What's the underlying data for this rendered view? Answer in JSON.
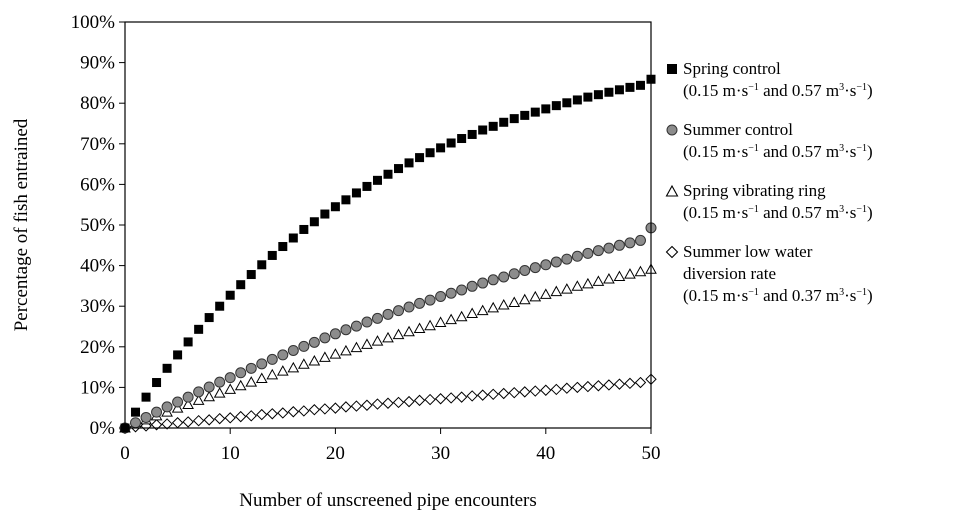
{
  "chart_data": {
    "type": "scatter",
    "xlabel": "Number of unscreened pipe encounters",
    "ylabel": "Percentage of fish entrained",
    "xlim": [
      0,
      50
    ],
    "ylim": [
      0,
      100
    ],
    "xticks": [
      0,
      10,
      20,
      30,
      40,
      50
    ],
    "yticks": [
      "0%",
      "10%",
      "20%",
      "30%",
      "40%",
      "50%",
      "60%",
      "70%",
      "80%",
      "90%",
      "100%"
    ],
    "grid": false,
    "legend_position": "right",
    "x": [
      0,
      1,
      2,
      3,
      4,
      5,
      6,
      7,
      8,
      9,
      10,
      11,
      12,
      13,
      14,
      15,
      16,
      17,
      18,
      19,
      20,
      21,
      22,
      23,
      24,
      25,
      26,
      27,
      28,
      29,
      30,
      31,
      32,
      33,
      34,
      35,
      36,
      37,
      38,
      39,
      40,
      41,
      42,
      43,
      44,
      45,
      46,
      47,
      48,
      49,
      50
    ],
    "series": [
      {
        "name": "Spring control",
        "marker": "square-filled",
        "color": "#000000",
        "values": [
          0,
          3.9,
          7.6,
          11.2,
          14.7,
          18.0,
          21.2,
          24.3,
          27.2,
          30.0,
          32.7,
          35.3,
          37.8,
          40.2,
          42.5,
          44.7,
          46.8,
          48.9,
          50.8,
          52.7,
          54.5,
          56.2,
          57.9,
          59.5,
          61.0,
          62.5,
          63.9,
          65.3,
          66.6,
          67.8,
          69.0,
          70.2,
          71.3,
          72.3,
          73.4,
          74.3,
          75.3,
          76.2,
          77.0,
          77.8,
          78.6,
          79.4,
          80.1,
          80.8,
          81.5,
          82.1,
          82.7,
          83.3,
          83.9,
          84.4,
          85.9
        ]
      },
      {
        "name": "Summer control",
        "marker": "circle-gray",
        "color": "#8c8c8c",
        "values": [
          0,
          1.3,
          2.6,
          3.9,
          5.2,
          6.4,
          7.6,
          8.9,
          10.1,
          11.3,
          12.4,
          13.6,
          14.7,
          15.8,
          16.9,
          18.0,
          19.1,
          20.1,
          21.1,
          22.2,
          23.2,
          24.2,
          25.1,
          26.1,
          27.0,
          28.0,
          28.9,
          29.8,
          30.7,
          31.5,
          32.4,
          33.2,
          34.0,
          34.9,
          35.7,
          36.5,
          37.2,
          38.0,
          38.8,
          39.5,
          40.2,
          40.9,
          41.6,
          42.3,
          43.0,
          43.7,
          44.3,
          45.0,
          45.6,
          46.2,
          49.3
        ]
      },
      {
        "name": "Spring vibrating ring",
        "marker": "triangle-open",
        "color": "#000000",
        "values": [
          0,
          1.0,
          2.0,
          3.0,
          3.9,
          4.9,
          5.8,
          6.8,
          7.7,
          8.6,
          9.5,
          10.4,
          11.3,
          12.2,
          13.1,
          14.0,
          14.8,
          15.7,
          16.5,
          17.4,
          18.2,
          19.0,
          19.8,
          20.6,
          21.4,
          22.2,
          23.0,
          23.7,
          24.5,
          25.2,
          26.0,
          26.7,
          27.4,
          28.2,
          28.9,
          29.6,
          30.3,
          30.9,
          31.6,
          32.3,
          32.9,
          33.6,
          34.2,
          34.9,
          35.5,
          36.1,
          36.7,
          37.3,
          37.9,
          38.5,
          39.1
        ]
      },
      {
        "name": "Summer low water diversion rate",
        "marker": "diamond-open",
        "color": "#000000",
        "values": [
          0,
          0.3,
          0.5,
          0.8,
          1.0,
          1.3,
          1.5,
          1.8,
          2.0,
          2.3,
          2.5,
          2.8,
          3.0,
          3.3,
          3.5,
          3.7,
          4.0,
          4.2,
          4.5,
          4.7,
          4.9,
          5.2,
          5.4,
          5.6,
          5.9,
          6.1,
          6.3,
          6.5,
          6.8,
          7.0,
          7.2,
          7.4,
          7.6,
          7.9,
          8.1,
          8.3,
          8.5,
          8.7,
          8.9,
          9.1,
          9.3,
          9.5,
          9.8,
          10.0,
          10.2,
          10.4,
          10.6,
          10.8,
          11.0,
          11.2,
          12.0
        ]
      }
    ]
  },
  "legend": {
    "items": [
      {
        "label": "Spring control",
        "sub_a": "(0.15 m",
        "sub_b": "s",
        "sub_c": " and 0.57 m",
        "sub_d": "s",
        "sub_e": ")",
        "exp_a": "−1",
        "exp_b": "3",
        "exp_c": "−1"
      },
      {
        "label": "Summer control",
        "sub_a": "(0.15 m",
        "sub_b": "s",
        "sub_c": " and 0.57 m",
        "sub_d": "s",
        "sub_e": ")",
        "exp_a": "−1",
        "exp_b": "3",
        "exp_c": "−1"
      },
      {
        "label": "Spring vibrating ring",
        "sub_a": "(0.15 m",
        "sub_b": "s",
        "sub_c": " and 0.57 m",
        "sub_d": "s",
        "sub_e": ")",
        "exp_a": "−1",
        "exp_b": "3",
        "exp_c": "−1"
      },
      {
        "label": "Summer low water",
        "label2": "diversion rate",
        "sub_a": "(0.15 m",
        "sub_b": "s",
        "sub_c": " and 0.37 m",
        "sub_d": "s",
        "sub_e": ")",
        "exp_a": "−1",
        "exp_b": "3",
        "exp_c": "−1"
      }
    ]
  }
}
